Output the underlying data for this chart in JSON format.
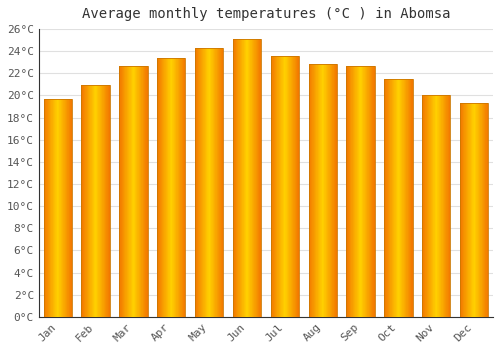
{
  "title": "Average monthly temperatures (°C ) in Abomsa",
  "months": [
    "Jan",
    "Feb",
    "Mar",
    "Apr",
    "May",
    "Jun",
    "Jul",
    "Aug",
    "Sep",
    "Oct",
    "Nov",
    "Dec"
  ],
  "values": [
    19.7,
    20.9,
    22.7,
    23.4,
    24.3,
    25.1,
    23.6,
    22.8,
    22.7,
    21.5,
    20.0,
    19.3
  ],
  "bar_color_center": "#FFB300",
  "bar_color_edge": "#F07800",
  "ylim": [
    0,
    26
  ],
  "ytick_step": 2,
  "background_color": "#FFFFFF",
  "grid_color": "#E0E0E0",
  "title_fontsize": 10,
  "tick_fontsize": 8,
  "font_family": "monospace"
}
